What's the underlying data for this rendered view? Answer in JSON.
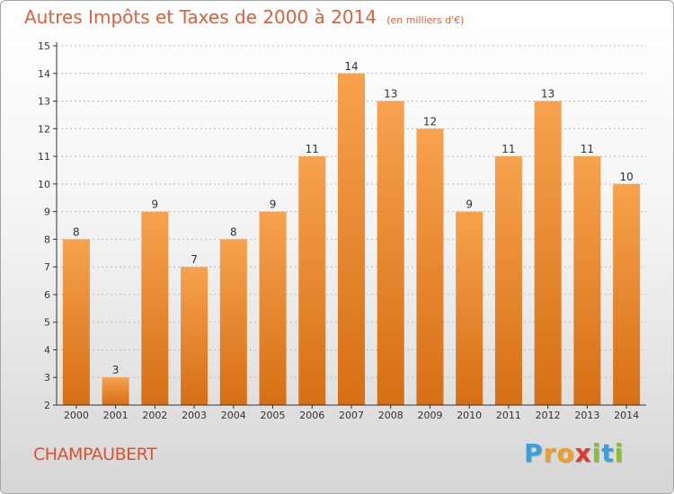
{
  "title": "Autres Impôts et Taxes de 2000 à 2014",
  "subtitle": "(en milliers d'€)",
  "town": "CHAMPAUBERT",
  "brand": {
    "letters": [
      "P",
      "r",
      "o",
      "x",
      "i",
      "t",
      "i"
    ],
    "colors": [
      "#3aa0dc",
      "#f0a020",
      "#f0a020",
      "#e03a2a",
      "#88c030",
      "#3aa0dc",
      "#88c030"
    ]
  },
  "colors": {
    "title": "#e0603a",
    "bar_light": "#f7a24e",
    "bar_dark": "#d66f14",
    "axis": "#333333"
  },
  "chart_data": {
    "type": "bar",
    "categories": [
      "2000",
      "2001",
      "2002",
      "2003",
      "2004",
      "2005",
      "2006",
      "2007",
      "2008",
      "2009",
      "2010",
      "2011",
      "2012",
      "2013",
      "2014"
    ],
    "values": [
      8,
      3,
      9,
      7,
      8,
      9,
      11,
      14,
      13,
      12,
      9,
      11,
      13,
      11,
      10
    ],
    "yticks": [
      2,
      3,
      4,
      5,
      6,
      7,
      8,
      9,
      10,
      11,
      12,
      13,
      14,
      15
    ],
    "ylim": [
      2,
      15
    ],
    "grid": true,
    "legend": "none"
  }
}
